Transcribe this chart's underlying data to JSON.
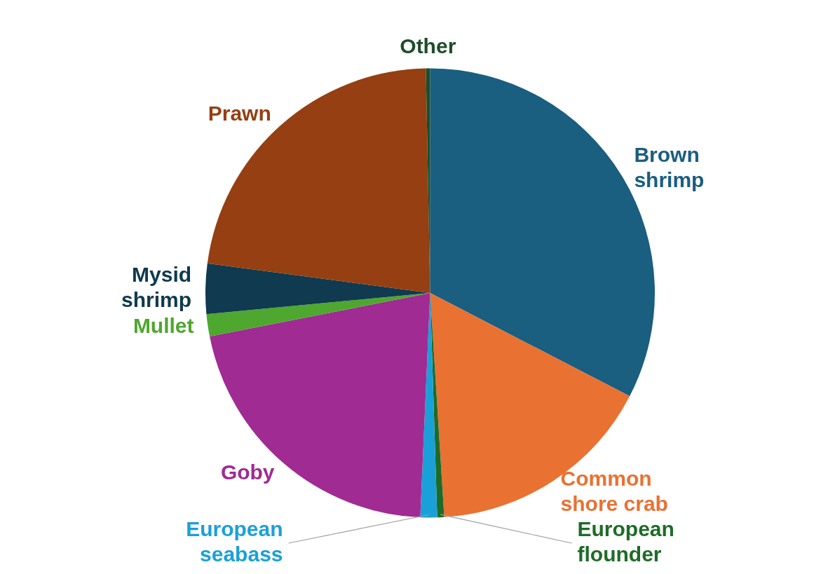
{
  "chart_data": {
    "type": "pie",
    "categories": [
      "Brown shrimp",
      "Common shore crab",
      "European flounder",
      "European seabass",
      "Goby",
      "Mullet",
      "Mysid shrimp",
      "Prawn",
      "Other"
    ],
    "values": [
      32.6,
      16.4,
      0.5,
      1.2,
      21.2,
      1.6,
      3.6,
      22.6,
      0.3
    ],
    "colors": [
      "#1a5e80",
      "#e97132",
      "#1e6b28",
      "#1aa0d8",
      "#a02b93",
      "#4ea72e",
      "#0f3a4f",
      "#953f12",
      "#1e4d2b"
    ],
    "legend": false
  }
}
